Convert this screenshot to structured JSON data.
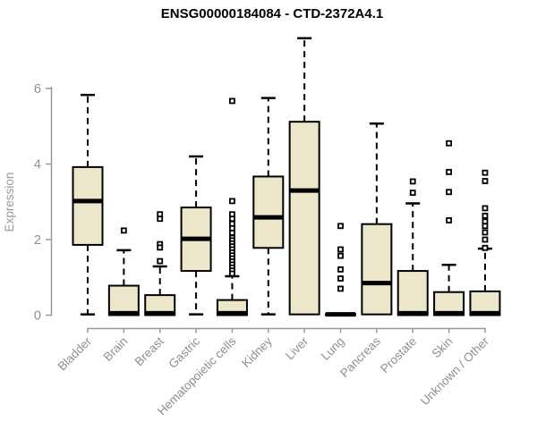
{
  "header": {
    "title": "ENSG00000184084 - CTD-2372A4.1"
  },
  "chart_data": {
    "type": "boxplot",
    "title": "ENSG00000184084 - CTD-2372A4.1",
    "xlabel": "",
    "ylabel": "Expression",
    "ylim": [
      0,
      6
    ],
    "yticks": [
      0,
      2,
      4,
      6
    ],
    "grid": false,
    "legend": "none",
    "colors": {
      "box_fill": "#ece7cb",
      "box_stroke": "#000000",
      "median": "#000000",
      "whisker": "#000000",
      "outlier_fill": "#ffffff",
      "outlier_stroke": "#000000",
      "axis": "#999999",
      "tick_label": "#8f8f8f",
      "title": "#000000",
      "background": "#ffffff"
    },
    "categories": [
      "Bladder",
      "Brain",
      "Breast",
      "Gastric",
      "Hematopoietic cells",
      "Kidney",
      "Liver",
      "Lung",
      "Pancreas",
      "Prostate",
      "Skin",
      "Unknown / Other"
    ],
    "boxes": [
      {
        "category": "Bladder",
        "whisker_low": 0.02,
        "q1": 1.86,
        "median": 3.02,
        "q3": 3.92,
        "whisker_high": 5.83,
        "outliers": []
      },
      {
        "category": "Brain",
        "whisker_low": 0.0,
        "q1": 0.0,
        "median": 0.05,
        "q3": 0.78,
        "whisker_high": 1.72,
        "outliers": [
          2.24
        ]
      },
      {
        "category": "Breast",
        "whisker_low": 0.0,
        "q1": 0.0,
        "median": 0.05,
        "q3": 0.53,
        "whisker_high": 1.29,
        "outliers": [
          2.67,
          2.55,
          1.88,
          1.79,
          1.43
        ]
      },
      {
        "category": "Gastric",
        "whisker_low": 0.02,
        "q1": 1.17,
        "median": 2.02,
        "q3": 2.85,
        "whisker_high": 4.2,
        "outliers": []
      },
      {
        "category": "Hematopoietic cells",
        "whisker_low": 0.0,
        "q1": 0.0,
        "median": 0.05,
        "q3": 0.4,
        "whisker_high": 1.03,
        "outliers": [
          5.67,
          3.02,
          2.67,
          2.55,
          2.42,
          2.3,
          2.18,
          2.05,
          1.98,
          1.9,
          1.82,
          1.74,
          1.66,
          1.58,
          1.5,
          1.42,
          1.34,
          1.26,
          1.18,
          1.1
        ]
      },
      {
        "category": "Kidney",
        "whisker_low": 0.02,
        "q1": 1.78,
        "median": 2.59,
        "q3": 3.67,
        "whisker_high": 5.75,
        "outliers": []
      },
      {
        "category": "Liver",
        "whisker_low": 0.02,
        "q1": 0.02,
        "median": 3.3,
        "q3": 5.12,
        "whisker_high": 7.33,
        "outliers": []
      },
      {
        "category": "Lung",
        "whisker_low": 0.0,
        "q1": 0.0,
        "median": 0.02,
        "q3": 0.03,
        "whisker_high": 0.03,
        "outliers": [
          2.36,
          1.74,
          1.57,
          1.21,
          0.97,
          0.7
        ]
      },
      {
        "category": "Pancreas",
        "whisker_low": 0.02,
        "q1": 0.02,
        "median": 0.85,
        "q3": 2.41,
        "whisker_high": 5.07,
        "outliers": []
      },
      {
        "category": "Prostate",
        "whisker_low": 0.0,
        "q1": 0.0,
        "median": 0.05,
        "q3": 1.17,
        "whisker_high": 2.96,
        "outliers": [
          3.54,
          3.24
        ]
      },
      {
        "category": "Skin",
        "whisker_low": 0.0,
        "q1": 0.0,
        "median": 0.05,
        "q3": 0.61,
        "whisker_high": 1.33,
        "outliers": [
          4.55,
          3.79,
          3.26,
          2.51
        ]
      },
      {
        "category": "Unknown / Other",
        "whisker_low": 0.0,
        "q1": 0.0,
        "median": 0.05,
        "q3": 0.63,
        "whisker_high": 1.76,
        "outliers": [
          3.77,
          3.55,
          2.83,
          2.63,
          2.48,
          2.36,
          2.19,
          2.0,
          1.78
        ]
      }
    ]
  }
}
